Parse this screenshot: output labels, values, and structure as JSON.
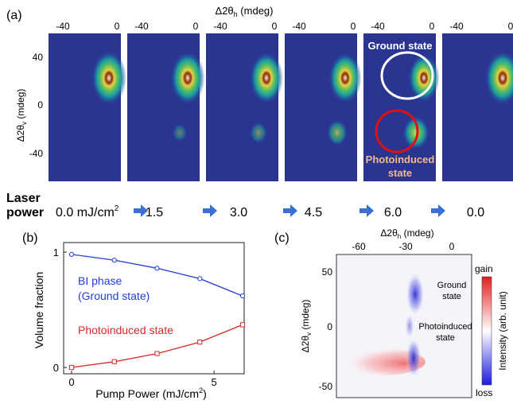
{
  "panel_a": {
    "label": "(a)",
    "xaxis_label": "Δ2θ",
    "xaxis_sub": "h",
    "xaxis_unit": " (mdeg)",
    "yaxis_label": "Δ2θ",
    "yaxis_sub": "v",
    "yaxis_unit": " (mdeg)",
    "x_ticks": [
      "-40",
      "0"
    ],
    "y_ticks": [
      "40",
      "0",
      "-40"
    ],
    "ground_label": "Ground state",
    "photo_label_1": "Photoinduced",
    "photo_label_2": "state",
    "laser_label_1": "Laser",
    "laser_label_2": "power",
    "power_values": [
      "0.0 mJ/cm",
      "1.5",
      "3.0",
      "4.5",
      "6.0",
      "0.0"
    ],
    "power_sup": "2",
    "frames": [
      {
        "main": 1.0,
        "secondary": 0.0
      },
      {
        "main": 0.93,
        "secondary": 0.05
      },
      {
        "main": 0.85,
        "secondary": 0.12
      },
      {
        "main": 0.78,
        "secondary": 0.22
      },
      {
        "main": 0.62,
        "secondary": 0.37
      },
      {
        "main": 1.0,
        "secondary": 0.0
      }
    ]
  },
  "panel_b": {
    "label": "(b)",
    "chart_data": {
      "type": "line",
      "xlabel": "Pump Power (mJ/cm",
      "xlabel_sup": "2",
      "xlabel_end": ")",
      "ylabel": "Volume fraction",
      "x_ticks": [
        "0",
        "5"
      ],
      "y_ticks": [
        "0",
        "1"
      ],
      "xlim": [
        0,
        6
      ],
      "ylim": [
        0,
        1
      ],
      "series": [
        {
          "name": "BI phase (Ground state)",
          "color": "#1f3fd6",
          "marker": "circle",
          "x": [
            0,
            1.5,
            3.0,
            4.5,
            6.0
          ],
          "y": [
            0.98,
            0.93,
            0.86,
            0.77,
            0.62
          ]
        },
        {
          "name": "Photoinduced state",
          "color": "#d62a2a",
          "marker": "square",
          "x": [
            0,
            1.5,
            3.0,
            4.5,
            6.0
          ],
          "y": [
            0.0,
            0.05,
            0.12,
            0.22,
            0.37
          ]
        }
      ],
      "annotations": [
        "BI phase",
        "(Ground state)",
        "Photoinduced state"
      ]
    }
  },
  "panel_c": {
    "label": "(c)",
    "xaxis_label": "Δ2θ",
    "xaxis_sub": "h",
    "xaxis_unit": " (mdeg)",
    "yaxis_label": "Δ2θ",
    "yaxis_sub": "v",
    "yaxis_unit": " (mdeg)",
    "x_ticks": [
      "-60",
      "-30",
      "0"
    ],
    "y_ticks": [
      "50",
      "0",
      "-50"
    ],
    "ground_1": "Ground",
    "ground_2": "state",
    "photo_1": "Photoinduced",
    "photo_2": "state",
    "cbar_top": "gain",
    "cbar_bottom": "loss",
    "cbar_label": "Intensity (arb. unit)",
    "colors": {
      "gain": "#e02020",
      "loss": "#1a1ae0"
    }
  }
}
